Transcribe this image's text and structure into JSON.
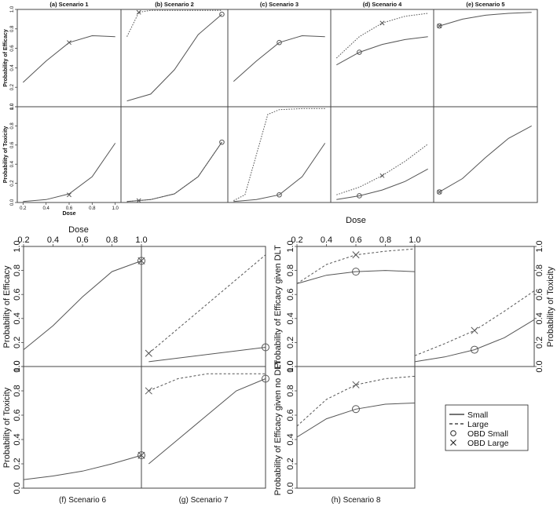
{
  "chart_data": {
    "type": "line",
    "colors": {
      "curve": "#555555",
      "frame": "#444444",
      "legend": "#222222"
    },
    "legend": {
      "placement": "center-right",
      "entries": [
        {
          "label": "Small",
          "symbol": "solid-line"
        },
        {
          "label": "Large",
          "symbol": "dashed-line"
        },
        {
          "label": "OBD Small",
          "symbol": "circle"
        },
        {
          "label": "OBD Large",
          "symbol": "cross"
        }
      ]
    },
    "top_group": {
      "panels": [
        {
          "title": "(a) Scenario 1",
          "efficacy": {
            "small": {
              "x": [
                0.2,
                0.4,
                0.6,
                0.8,
                1.0
              ],
              "y": [
                0.25,
                0.47,
                0.66,
                0.73,
                0.72
              ]
            },
            "large": null,
            "obd_small": null,
            "obd_large": [
              0.6,
              0.66
            ]
          },
          "toxicity": {
            "small": {
              "x": [
                0.2,
                0.4,
                0.6,
                0.8,
                1.0
              ],
              "y": [
                0.01,
                0.03,
                0.09,
                0.27,
                0.62
              ]
            },
            "large": null,
            "obd_small": null,
            "obd_large": [
              0.6,
              0.08
            ]
          }
        },
        {
          "title": "(b) Scenario 2",
          "efficacy": {
            "small": {
              "x": [
                0.2,
                0.4,
                0.6,
                0.8,
                1.0
              ],
              "y": [
                0.06,
                0.13,
                0.38,
                0.74,
                0.95
              ]
            },
            "large": {
              "x": [
                0.2,
                0.3,
                0.4,
                0.6,
                0.8,
                1.0
              ],
              "y": [
                0.72,
                0.97,
                0.99,
                0.99,
                0.99,
                0.99
              ]
            },
            "obd_small": [
              1.0,
              0.95
            ],
            "obd_large": [
              0.3,
              0.97
            ]
          },
          "toxicity": {
            "small": {
              "x": [
                0.2,
                0.4,
                0.6,
                0.8,
                1.0
              ],
              "y": [
                0.01,
                0.03,
                0.09,
                0.27,
                0.63
              ]
            },
            "large": {
              "x": [
                0.2,
                0.4,
                0.6,
                0.8,
                1.0
              ],
              "y": [
                0.01,
                0.03,
                0.09,
                0.27,
                0.63
              ]
            },
            "obd_small": [
              1.0,
              0.63
            ],
            "obd_large": [
              0.3,
              0.02
            ]
          }
        },
        {
          "title": "(c) Scenario 3",
          "efficacy": {
            "small": {
              "x": [
                0.2,
                0.4,
                0.6,
                0.8,
                1.0
              ],
              "y": [
                0.26,
                0.47,
                0.66,
                0.73,
                0.72
              ]
            },
            "large": null,
            "obd_small": [
              0.6,
              0.66
            ],
            "obd_large": null
          },
          "toxicity": {
            "small": {
              "x": [
                0.2,
                0.4,
                0.6,
                0.8,
                1.0
              ],
              "y": [
                0.01,
                0.03,
                0.08,
                0.27,
                0.62
              ]
            },
            "large": {
              "x": [
                0.2,
                0.3,
                0.4,
                0.5,
                0.6,
                0.8,
                1.0
              ],
              "y": [
                0.02,
                0.08,
                0.5,
                0.92,
                0.97,
                0.98,
                0.98
              ]
            },
            "obd_small": [
              0.6,
              0.08
            ],
            "obd_large": null
          }
        },
        {
          "title": "(d) Scenario 4",
          "efficacy": {
            "small": {
              "x": [
                0.2,
                0.4,
                0.6,
                0.8,
                1.0
              ],
              "y": [
                0.43,
                0.56,
                0.64,
                0.69,
                0.72
              ]
            },
            "large": {
              "x": [
                0.2,
                0.4,
                0.6,
                0.8,
                1.0
              ],
              "y": [
                0.5,
                0.72,
                0.86,
                0.93,
                0.96
              ]
            },
            "obd_small": [
              0.4,
              0.56
            ],
            "obd_large": [
              0.6,
              0.86
            ]
          },
          "toxicity": {
            "small": {
              "x": [
                0.2,
                0.4,
                0.6,
                0.8,
                1.0
              ],
              "y": [
                0.03,
                0.07,
                0.13,
                0.22,
                0.35
              ]
            },
            "large": {
              "x": [
                0.2,
                0.4,
                0.6,
                0.8,
                1.0
              ],
              "y": [
                0.08,
                0.16,
                0.28,
                0.43,
                0.61
              ]
            },
            "obd_small": [
              0.4,
              0.07
            ],
            "obd_large": [
              0.6,
              0.28
            ]
          }
        },
        {
          "title": "(e) Scenario 5",
          "efficacy": {
            "small": {
              "x": [
                0.2,
                0.4,
                0.6,
                0.8,
                1.0
              ],
              "y": [
                0.83,
                0.9,
                0.94,
                0.96,
                0.97
              ]
            },
            "large": null,
            "obd_small": [
              0.2,
              0.83
            ],
            "obd_large": [
              0.2,
              0.83
            ]
          },
          "toxicity": {
            "small": {
              "x": [
                0.2,
                0.4,
                0.6,
                0.8,
                1.0
              ],
              "y": [
                0.11,
                0.25,
                0.47,
                0.67,
                0.8
              ]
            },
            "large": null,
            "obd_small": [
              0.2,
              0.11
            ],
            "obd_large": [
              0.2,
              0.11
            ]
          }
        }
      ],
      "ylabel_efficacy": "Probability of Efficacy",
      "ylabel_toxicity": "Probability of Toxicity",
      "xlabel": "Dose",
      "xticks": [
        "0.2",
        "0.4",
        "0.6",
        "0.8",
        "1.0"
      ],
      "yticks": [
        "0.0",
        "0.2",
        "0.4",
        "0.6",
        "0.8",
        "1.0"
      ],
      "ylim": [
        0,
        1
      ],
      "xlim": [
        0.15,
        1.05
      ]
    },
    "bottom_left": {
      "xlabel": "Dose",
      "xticks": [
        "0.2",
        "0.4",
        "0.6",
        "0.8",
        "1.0"
      ],
      "yticks": [
        "0.0",
        "0.2",
        "0.4",
        "0.6",
        "0.8",
        "1.0"
      ],
      "ylabel_top": "Probability of Efficacy",
      "ylabel_bottom": "Probability of Toxicity",
      "scenario6": {
        "title": "(f) Scenario 6",
        "efficacy": {
          "small": {
            "x": [
              0.2,
              0.4,
              0.6,
              0.8,
              1.0
            ],
            "y": [
              0.14,
              0.34,
              0.58,
              0.79,
              0.88
            ]
          },
          "large": null,
          "obd_small": [
            1.0,
            0.88
          ],
          "obd_large": [
            1.0,
            0.88
          ]
        },
        "toxicity": {
          "small": {
            "x": [
              0.2,
              0.4,
              0.6,
              0.8,
              1.0
            ],
            "y": [
              0.07,
              0.1,
              0.14,
              0.2,
              0.27
            ]
          },
          "large": null,
          "obd_small": [
            1.0,
            0.27
          ],
          "obd_large": [
            1.0,
            0.27
          ]
        }
      },
      "scenario7": {
        "title": "(g) Scenario 7",
        "efficacy": {
          "small": {
            "x": [
              0.2,
              1.0
            ],
            "y": [
              0.04,
              0.16
            ]
          },
          "large": {
            "x": [
              0.2,
              1.0
            ],
            "y": [
              0.11,
              0.93
            ]
          },
          "obd_small": [
            1.0,
            0.16
          ],
          "obd_large": [
            0.2,
            0.11
          ]
        },
        "toxicity": {
          "small": {
            "x": [
              0.2,
              0.4,
              0.6,
              0.8,
              1.0
            ],
            "y": [
              0.2,
              0.4,
              0.6,
              0.8,
              0.9
            ]
          },
          "large": {
            "x": [
              0.2,
              0.4,
              0.6,
              0.8,
              1.0
            ],
            "y": [
              0.8,
              0.9,
              0.94,
              0.94,
              0.94
            ]
          },
          "obd_small": [
            1.0,
            0.9
          ],
          "obd_large": [
            0.2,
            0.8
          ]
        }
      }
    },
    "bottom_right": {
      "title": "(h) Scenario 8",
      "xlabel": "Dose",
      "xticks": [
        "0.2",
        "0.4",
        "0.6",
        "0.8",
        "1.0"
      ],
      "yticks": [
        "0.0",
        "0.2",
        "0.4",
        "0.6",
        "0.8",
        "1.0"
      ],
      "ylabel_top": "Probability of Efficacy given DLT",
      "ylabel_bottom": "Probability of Efficacy given no DLT",
      "ylabel_right": "Probability of Toxicity",
      "efficacy_given_dlt": {
        "small": {
          "x": [
            0.2,
            0.4,
            0.6,
            0.8,
            1.0
          ],
          "y": [
            0.69,
            0.76,
            0.79,
            0.8,
            0.79
          ]
        },
        "large": {
          "x": [
            0.2,
            0.4,
            0.6,
            0.8,
            1.0
          ],
          "y": [
            0.69,
            0.85,
            0.93,
            0.96,
            0.98
          ]
        },
        "obd_small": [
          0.6,
          0.79
        ],
        "obd_large": [
          0.6,
          0.93
        ]
      },
      "efficacy_given_no_dlt": {
        "small": {
          "x": [
            0.2,
            0.4,
            0.6,
            0.8,
            1.0
          ],
          "y": [
            0.42,
            0.57,
            0.65,
            0.69,
            0.7
          ]
        },
        "large": {
          "x": [
            0.2,
            0.4,
            0.6,
            0.8,
            1.0
          ],
          "y": [
            0.51,
            0.73,
            0.85,
            0.9,
            0.92
          ]
        },
        "obd_small": [
          0.6,
          0.65
        ],
        "obd_large": [
          0.6,
          0.85
        ]
      },
      "toxicity": {
        "small": {
          "x": [
            0.2,
            0.4,
            0.6,
            0.8,
            1.0
          ],
          "y": [
            0.04,
            0.08,
            0.14,
            0.24,
            0.39
          ]
        },
        "large": {
          "x": [
            0.2,
            0.4,
            0.6,
            0.8,
            1.0
          ],
          "y": [
            0.09,
            0.19,
            0.3,
            0.46,
            0.63
          ]
        },
        "obd_small": [
          0.6,
          0.14
        ],
        "obd_large": [
          0.6,
          0.3
        ]
      }
    }
  }
}
